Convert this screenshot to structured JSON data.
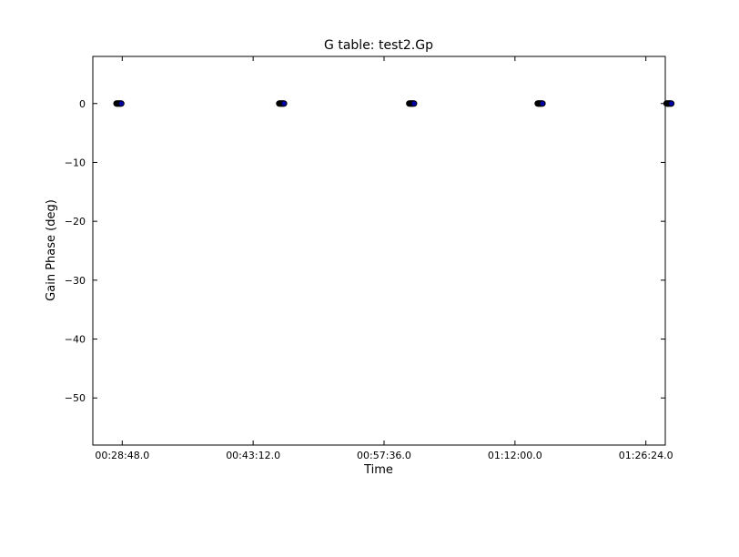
{
  "chart_data": {
    "type": "scatter",
    "title": "G table: test2.Gp",
    "xlabel": "Time",
    "ylabel": "Gain Phase (deg)",
    "x_ticks": [
      "00:28:48.0",
      "00:43:12.0",
      "00:57:36.0",
      "01:12:00.0",
      "01:26:24.0"
    ],
    "y_ticks": [
      0,
      -10,
      -20,
      -30,
      -40,
      -50
    ],
    "ylim": [
      -58,
      8
    ],
    "xlim": [
      "00:25:34",
      "01:28:32"
    ],
    "grid": false,
    "marker_color": "#0000aa",
    "marker_edge": "#000000",
    "series": [
      {
        "x": [
          "00:28:10",
          "00:28:14",
          "00:28:18",
          "00:28:22",
          "00:28:26",
          "00:28:30",
          "00:28:34",
          "00:28:38",
          "00:28:42",
          "00:46:04",
          "00:46:08",
          "00:46:12",
          "00:46:16",
          "00:46:20",
          "00:46:24",
          "00:46:28",
          "00:46:32",
          "00:46:36",
          "01:00:22",
          "01:00:26",
          "01:00:30",
          "01:00:34",
          "01:00:38",
          "01:00:42",
          "01:00:46",
          "01:00:50",
          "01:00:54",
          "01:14:30",
          "01:14:34",
          "01:14:38",
          "01:14:42",
          "01:14:46",
          "01:14:50",
          "01:14:54",
          "01:14:58",
          "01:15:02",
          "01:28:40",
          "01:28:44",
          "01:28:48",
          "01:28:52",
          "01:28:56",
          "01:29:00",
          "01:29:04",
          "01:29:08",
          "01:29:12"
        ],
        "values": [
          0,
          0,
          0,
          0,
          0,
          0,
          0,
          0,
          0,
          0,
          0,
          0,
          0,
          0,
          0,
          0,
          0,
          0,
          0,
          0,
          0,
          0,
          0,
          0,
          0,
          0,
          0,
          0,
          0,
          0,
          0,
          0,
          0,
          0,
          0,
          0,
          0,
          0,
          0,
          0,
          0,
          0,
          0,
          0,
          0
        ]
      }
    ]
  }
}
